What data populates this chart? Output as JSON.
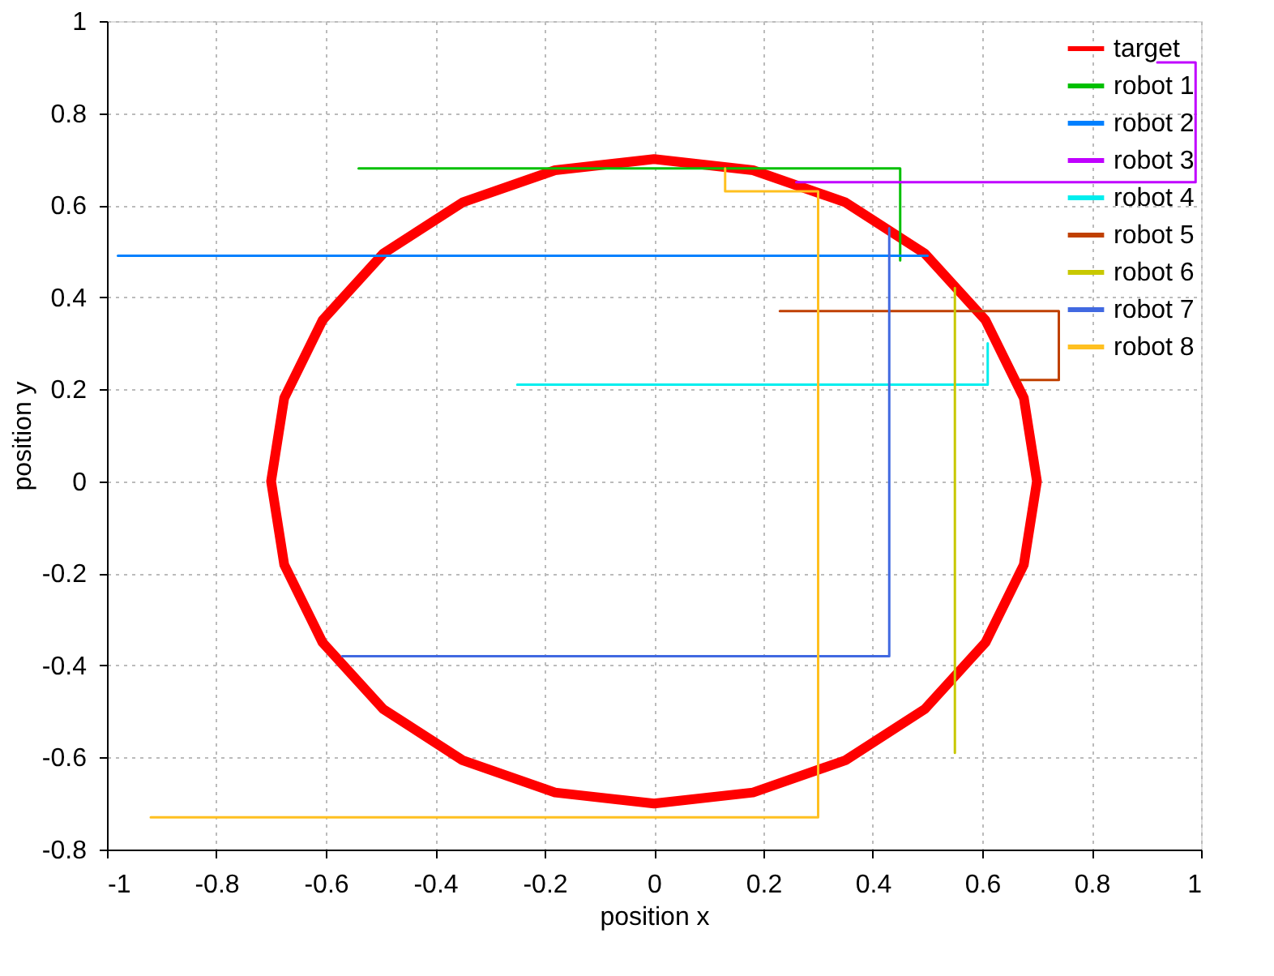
{
  "chart_data": {
    "type": "line",
    "xlabel": "position x",
    "ylabel": "position y",
    "xlim": [
      -1,
      1
    ],
    "ylim": [
      -0.8,
      1
    ],
    "xticks": [
      -1,
      -0.8,
      -0.6,
      -0.4,
      -0.2,
      0,
      0.2,
      0.4,
      0.6,
      0.8,
      1
    ],
    "yticks": [
      -0.8,
      -0.6,
      -0.4,
      -0.2,
      0,
      0.2,
      0.4,
      0.6,
      0.8,
      1
    ],
    "grid": true,
    "legend": "top right",
    "line_style": "solid",
    "series": [
      {
        "name": "target",
        "color": "#ff0000",
        "x": [
          0.7,
          0.676,
          0.606,
          0.495,
          0.35,
          0.181,
          0,
          -0.181,
          -0.35,
          -0.495,
          -0.606,
          -0.676,
          -0.7,
          -0.676,
          -0.606,
          -0.495,
          -0.35,
          -0.181,
          0,
          0.181,
          0.35,
          0.495,
          0.606,
          0.676,
          0.7,
          0.676
        ],
        "values": [
          0,
          0.181,
          0.35,
          0.495,
          0.606,
          0.676,
          0.7,
          0.676,
          0.606,
          0.495,
          0.35,
          0.181,
          0,
          -0.181,
          -0.35,
          -0.495,
          -0.606,
          -0.676,
          -0.7,
          -0.676,
          -0.606,
          -0.495,
          -0.35,
          -0.181,
          0,
          0.181
        ]
      },
      {
        "name": "robot 1",
        "color": "#00c000",
        "x": [
          -0.54,
          0.45,
          0.45
        ],
        "values": [
          0.68,
          0.68,
          0.48
        ]
      },
      {
        "name": "robot 2",
        "color": "#0080ff",
        "x": [
          -0.98,
          0.5
        ],
        "values": [
          0.49,
          0.49
        ]
      },
      {
        "name": "robot 3",
        "color": "#c000ff",
        "x": [
          0.92,
          0.99,
          0.99,
          0.26
        ],
        "values": [
          0.91,
          0.91,
          0.65,
          0.65
        ]
      },
      {
        "name": "robot 4",
        "color": "#00eeee",
        "x": [
          -0.25,
          0.61,
          0.61
        ],
        "values": [
          0.21,
          0.21,
          0.3
        ]
      },
      {
        "name": "robot 5",
        "color": "#c04000",
        "x": [
          0.23,
          0.74,
          0.74,
          0.67
        ],
        "values": [
          0.37,
          0.37,
          0.22,
          0.22
        ]
      },
      {
        "name": "robot 6",
        "color": "#c8c800",
        "x": [
          0.55,
          0.55
        ],
        "values": [
          -0.59,
          0.42
        ]
      },
      {
        "name": "robot 7",
        "color": "#4169e1",
        "x": [
          0.43,
          0.43,
          -0.57
        ],
        "values": [
          0.55,
          -0.38,
          -0.38
        ]
      },
      {
        "name": "robot 8",
        "color": "#ffc020",
        "x": [
          -0.92,
          0.3,
          0.3,
          0.13,
          0.13
        ],
        "values": [
          -0.73,
          -0.73,
          0.63,
          0.63,
          0.68
        ]
      }
    ]
  }
}
